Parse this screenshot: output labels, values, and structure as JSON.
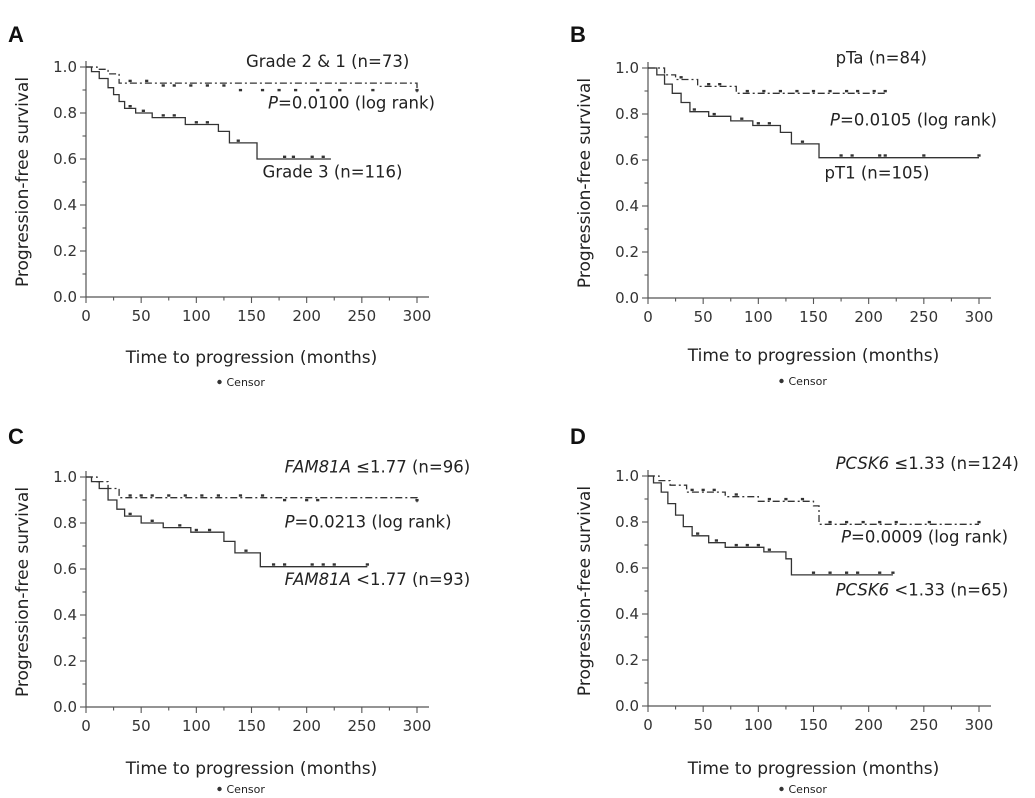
{
  "figure": {
    "legend_text": "Censor"
  },
  "chart_data": [
    {
      "panel": "A",
      "type": "line",
      "xlabel": "Time to progression (months)",
      "ylabel": "Progression-free survival",
      "xlim": [
        0,
        300
      ],
      "ylim": [
        0,
        1.0
      ],
      "xticks": [
        0,
        50,
        100,
        150,
        200,
        250,
        300
      ],
      "yticks": [
        0.0,
        0.2,
        0.4,
        0.6,
        0.8,
        1.0
      ],
      "pvalue": {
        "label": "P",
        "text": "=0.0100 (log rank)"
      },
      "series": [
        {
          "name": "Grade 2 &  1 (n=73)",
          "style": "dashed",
          "steps": [
            [
              0,
              1.0
            ],
            [
              10,
              0.99
            ],
            [
              20,
              0.97
            ],
            [
              30,
              0.93
            ],
            [
              300,
              0.89
            ]
          ],
          "censors": [
            [
              40,
              0.93
            ],
            [
              55,
              0.93
            ],
            [
              70,
              0.91
            ],
            [
              80,
              0.91
            ],
            [
              95,
              0.91
            ],
            [
              110,
              0.91
            ],
            [
              125,
              0.91
            ],
            [
              140,
              0.89
            ],
            [
              160,
              0.89
            ],
            [
              175,
              0.89
            ],
            [
              190,
              0.89
            ],
            [
              210,
              0.89
            ],
            [
              230,
              0.89
            ],
            [
              260,
              0.89
            ],
            [
              300,
              0.89
            ]
          ]
        },
        {
          "name": "Grade 3 (n=116)",
          "style": "solid",
          "steps": [
            [
              0,
              1.0
            ],
            [
              5,
              0.98
            ],
            [
              12,
              0.95
            ],
            [
              20,
              0.91
            ],
            [
              25,
              0.88
            ],
            [
              30,
              0.85
            ],
            [
              35,
              0.82
            ],
            [
              45,
              0.8
            ],
            [
              60,
              0.78
            ],
            [
              90,
              0.75
            ],
            [
              120,
              0.72
            ],
            [
              130,
              0.67
            ],
            [
              155,
              0.6
            ],
            [
              222,
              0.6
            ]
          ],
          "censors": [
            [
              40,
              0.82
            ],
            [
              52,
              0.8
            ],
            [
              70,
              0.78
            ],
            [
              80,
              0.78
            ],
            [
              100,
              0.75
            ],
            [
              110,
              0.75
            ],
            [
              138,
              0.67
            ],
            [
              180,
              0.6
            ],
            [
              188,
              0.6
            ],
            [
              205,
              0.6
            ],
            [
              215,
              0.6
            ]
          ]
        }
      ],
      "labels": [
        {
          "text": "Grade 2 &  1 (n=73)",
          "x": 145,
          "y": 1.0
        },
        {
          "text": "Grade 3 (n=116)",
          "x": 160,
          "y": 0.52
        }
      ],
      "plabel_pos": {
        "x": 165,
        "y": 0.82
      }
    },
    {
      "panel": "B",
      "type": "line",
      "xlabel": "Time to progression (months)",
      "ylabel": "Progression-free survival",
      "xlim": [
        0,
        300
      ],
      "ylim": [
        0,
        1.0
      ],
      "xticks": [
        0,
        50,
        100,
        150,
        200,
        250,
        300
      ],
      "yticks": [
        0.0,
        0.2,
        0.4,
        0.6,
        0.8,
        1.0
      ],
      "pvalue": {
        "label": "P",
        "text": "=0.0105 (log rank)"
      },
      "series": [
        {
          "name": "pTa (n=84)",
          "style": "dashed",
          "steps": [
            [
              0,
              1.0
            ],
            [
              15,
              0.97
            ],
            [
              25,
              0.95
            ],
            [
              45,
              0.92
            ],
            [
              80,
              0.89
            ],
            [
              215,
              0.89
            ]
          ],
          "censors": [
            [
              30,
              0.95
            ],
            [
              55,
              0.92
            ],
            [
              65,
              0.92
            ],
            [
              90,
              0.89
            ],
            [
              105,
              0.89
            ],
            [
              120,
              0.89
            ],
            [
              135,
              0.89
            ],
            [
              150,
              0.89
            ],
            [
              165,
              0.89
            ],
            [
              180,
              0.89
            ],
            [
              190,
              0.89
            ],
            [
              205,
              0.89
            ],
            [
              215,
              0.89
            ]
          ]
        },
        {
          "name": "pT1 (n=105)",
          "style": "solid",
          "steps": [
            [
              0,
              1.0
            ],
            [
              8,
              0.97
            ],
            [
              15,
              0.93
            ],
            [
              22,
              0.89
            ],
            [
              30,
              0.85
            ],
            [
              38,
              0.81
            ],
            [
              55,
              0.79
            ],
            [
              75,
              0.77
            ],
            [
              95,
              0.75
            ],
            [
              120,
              0.72
            ],
            [
              130,
              0.67
            ],
            [
              155,
              0.61
            ],
            [
              300,
              0.61
            ]
          ],
          "censors": [
            [
              42,
              0.81
            ],
            [
              60,
              0.79
            ],
            [
              85,
              0.77
            ],
            [
              100,
              0.75
            ],
            [
              110,
              0.75
            ],
            [
              140,
              0.67
            ],
            [
              175,
              0.61
            ],
            [
              185,
              0.61
            ],
            [
              210,
              0.61
            ],
            [
              215,
              0.61
            ],
            [
              250,
              0.61
            ],
            [
              300,
              0.61
            ]
          ]
        }
      ],
      "labels": [
        {
          "text": "pTa (n=84)",
          "x": 170,
          "y": 1.02
        },
        {
          "text": "pT1 (n=105)",
          "x": 160,
          "y": 0.52
        }
      ],
      "plabel_pos": {
        "x": 165,
        "y": 0.75
      }
    },
    {
      "panel": "C",
      "type": "line",
      "xlabel": "Time to progression (months)",
      "ylabel": "Progression-free survival",
      "xlim": [
        0,
        300
      ],
      "ylim": [
        0,
        1.0
      ],
      "xticks": [
        0,
        50,
        100,
        150,
        200,
        250,
        300
      ],
      "yticks": [
        0.0,
        0.2,
        0.4,
        0.6,
        0.8,
        1.0
      ],
      "pvalue": {
        "label": "P",
        "text": "=0.0213 (log rank)"
      },
      "series": [
        {
          "name": "≤1.77 (n=96)",
          "name_italic": "FAM81A",
          "style": "dashed",
          "steps": [
            [
              0,
              1.0
            ],
            [
              10,
              0.98
            ],
            [
              20,
              0.95
            ],
            [
              30,
              0.91
            ],
            [
              300,
              0.89
            ]
          ],
          "censors": [
            [
              40,
              0.91
            ],
            [
              50,
              0.91
            ],
            [
              60,
              0.91
            ],
            [
              75,
              0.91
            ],
            [
              90,
              0.91
            ],
            [
              105,
              0.91
            ],
            [
              120,
              0.91
            ],
            [
              140,
              0.91
            ],
            [
              160,
              0.91
            ],
            [
              180,
              0.89
            ],
            [
              200,
              0.89
            ],
            [
              210,
              0.89
            ],
            [
              300,
              0.89
            ]
          ]
        },
        {
          "name": "<1.77 (n=93)",
          "name_italic": "FAM81A",
          "style": "solid",
          "steps": [
            [
              0,
              1.0
            ],
            [
              5,
              0.98
            ],
            [
              12,
              0.95
            ],
            [
              20,
              0.9
            ],
            [
              28,
              0.86
            ],
            [
              35,
              0.83
            ],
            [
              50,
              0.8
            ],
            [
              70,
              0.78
            ],
            [
              95,
              0.76
            ],
            [
              125,
              0.72
            ],
            [
              135,
              0.67
            ],
            [
              158,
              0.61
            ],
            [
              255,
              0.61
            ]
          ],
          "censors": [
            [
              40,
              0.83
            ],
            [
              60,
              0.8
            ],
            [
              85,
              0.78
            ],
            [
              100,
              0.76
            ],
            [
              112,
              0.76
            ],
            [
              145,
              0.67
            ],
            [
              170,
              0.61
            ],
            [
              180,
              0.61
            ],
            [
              205,
              0.61
            ],
            [
              215,
              0.61
            ],
            [
              225,
              0.61
            ],
            [
              255,
              0.61
            ]
          ]
        }
      ],
      "labels": [
        {
          "text": "≤1.77 (n=96)",
          "italic": "FAM81A",
          "x": 180,
          "y": 1.02
        },
        {
          "text": "<1.77 (n=93)",
          "italic": "FAM81A",
          "x": 180,
          "y": 0.53
        }
      ],
      "plabel_pos": {
        "x": 180,
        "y": 0.78
      }
    },
    {
      "panel": "D",
      "type": "line",
      "xlabel": "Time to progression (months)",
      "ylabel": "Progression-free survival",
      "xlim": [
        0,
        300
      ],
      "ylim": [
        0,
        1.0
      ],
      "xticks": [
        0,
        50,
        100,
        150,
        200,
        250,
        300
      ],
      "yticks": [
        0.0,
        0.2,
        0.4,
        0.6,
        0.8,
        1.0
      ],
      "pvalue": {
        "label": "P",
        "text": "=0.0009 (log rank)"
      },
      "series": [
        {
          "name": "≤1.33 (n=124)",
          "name_italic": "PCSK6",
          "style": "dashed",
          "steps": [
            [
              0,
              1.0
            ],
            [
              10,
              0.98
            ],
            [
              20,
              0.96
            ],
            [
              35,
              0.93
            ],
            [
              70,
              0.91
            ],
            [
              100,
              0.89
            ],
            [
              150,
              0.87
            ],
            [
              155,
              0.79
            ],
            [
              300,
              0.79
            ]
          ],
          "censors": [
            [
              40,
              0.93
            ],
            [
              50,
              0.93
            ],
            [
              60,
              0.93
            ],
            [
              80,
              0.91
            ],
            [
              110,
              0.89
            ],
            [
              125,
              0.89
            ],
            [
              140,
              0.89
            ],
            [
              165,
              0.79
            ],
            [
              180,
              0.79
            ],
            [
              195,
              0.79
            ],
            [
              210,
              0.79
            ],
            [
              225,
              0.79
            ],
            [
              255,
              0.79
            ],
            [
              300,
              0.79
            ]
          ]
        },
        {
          "name": "<1.33 (n=65)",
          "name_italic": "PCSK6",
          "style": "solid",
          "steps": [
            [
              0,
              1.0
            ],
            [
              5,
              0.97
            ],
            [
              12,
              0.93
            ],
            [
              18,
              0.88
            ],
            [
              25,
              0.83
            ],
            [
              32,
              0.78
            ],
            [
              40,
              0.74
            ],
            [
              55,
              0.71
            ],
            [
              70,
              0.69
            ],
            [
              105,
              0.67
            ],
            [
              125,
              0.64
            ],
            [
              130,
              0.57
            ],
            [
              222,
              0.57
            ]
          ],
          "censors": [
            [
              45,
              0.74
            ],
            [
              62,
              0.71
            ],
            [
              80,
              0.69
            ],
            [
              90,
              0.69
            ],
            [
              100,
              0.69
            ],
            [
              110,
              0.67
            ],
            [
              150,
              0.57
            ],
            [
              165,
              0.57
            ],
            [
              180,
              0.57
            ],
            [
              190,
              0.57
            ],
            [
              210,
              0.57
            ],
            [
              222,
              0.57
            ]
          ]
        }
      ],
      "labels": [
        {
          "text": "≤1.33 (n=124)",
          "italic": "PCSK6",
          "x": 170,
          "y": 1.03
        },
        {
          "text": "<1.33 (n=65)",
          "italic": "PCSK6",
          "x": 170,
          "y": 0.48
        }
      ],
      "plabel_pos": {
        "x": 175,
        "y": 0.71
      }
    }
  ]
}
